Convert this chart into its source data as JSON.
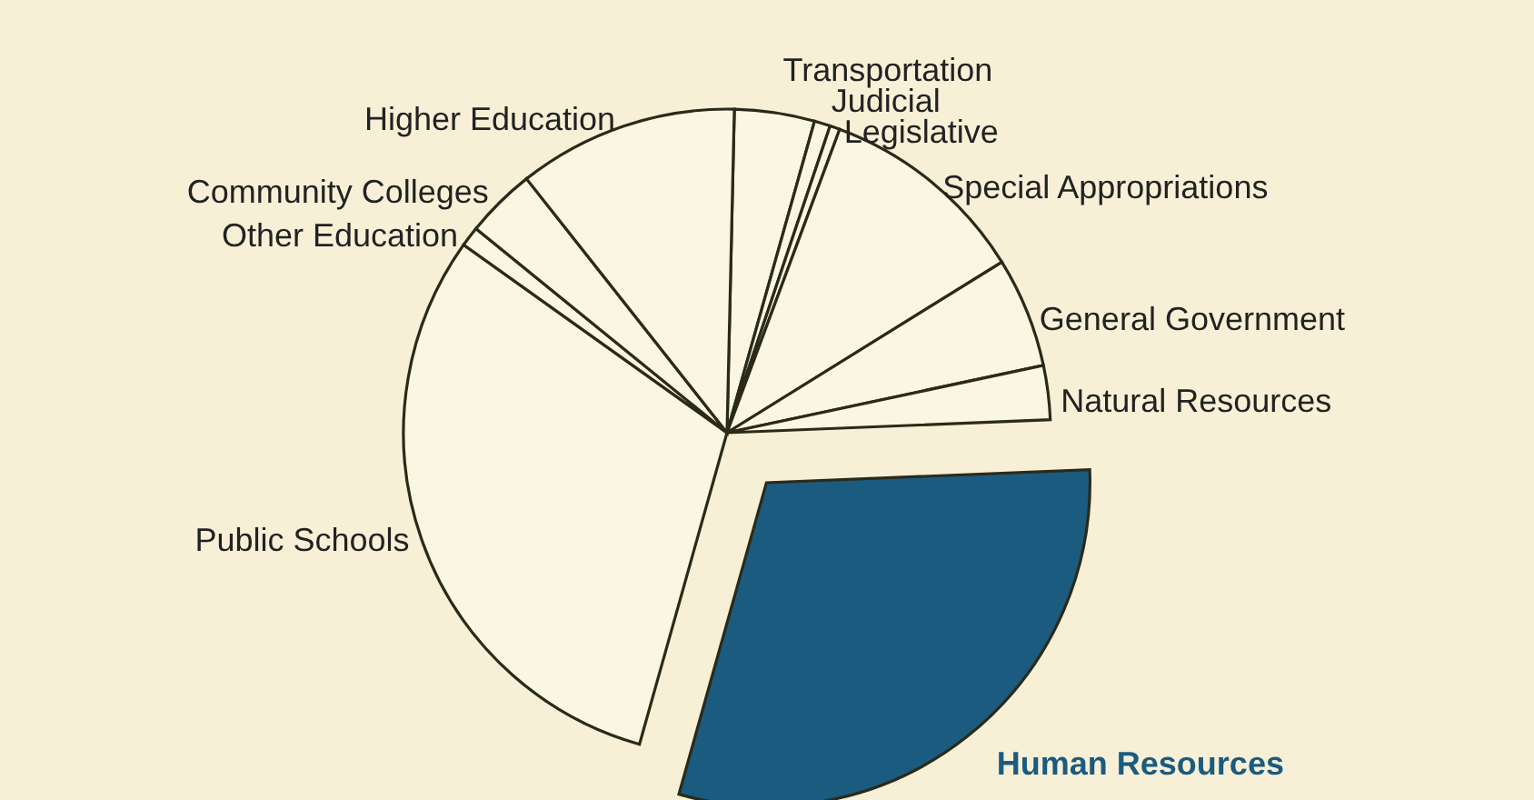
{
  "chart_data": {
    "type": "pie",
    "categories": [
      "Transportation",
      "Judicial",
      "Legislative",
      "Special Appropriations",
      "General Government",
      "Natural Resources",
      "Human Resources",
      "Public Schools",
      "Other Education",
      "Community Colleges",
      "Higher Education"
    ],
    "values": [
      4,
      0.8,
      0.5,
      10.5,
      5.5,
      2.7,
      30,
      30.5,
      1,
      3.5,
      11
    ],
    "colors": [
      "#fbf6e2",
      "#fbf6e2",
      "#fbf6e2",
      "#fbf6e2",
      "#fbf6e2",
      "#fbf6e2",
      "#1b5b80",
      "#fbf6e2",
      "#fbf6e2",
      "#fbf6e2",
      "#fbf6e2"
    ]
  }
}
